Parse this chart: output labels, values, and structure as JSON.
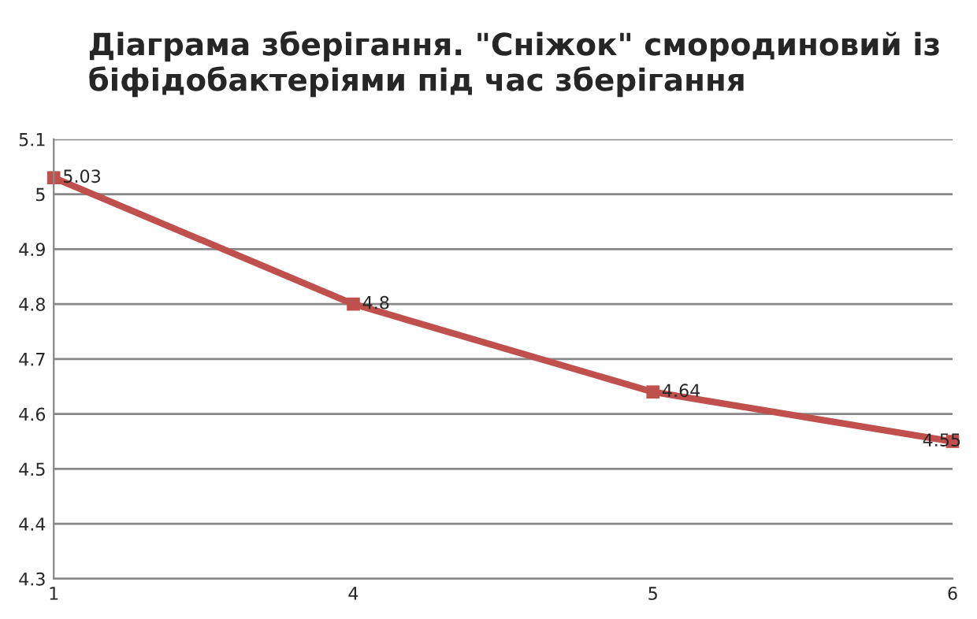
{
  "chart_data": {
    "type": "line",
    "title": "Діаграма зберігання. \"Сніжок\" смородиновий із біфідобактеріями під час зберігання",
    "categories": [
      "1",
      "4",
      "5",
      "6"
    ],
    "series": [
      {
        "color": "#c0504d",
        "values": [
          5.03,
          4.8,
          4.64,
          4.55
        ]
      }
    ],
    "ylim": [
      4.3,
      5.1
    ],
    "yticks": [
      4.3,
      4.4,
      4.5,
      4.6,
      4.7,
      4.8,
      4.9,
      5,
      5.1
    ],
    "grid": "y",
    "marker": "square",
    "line_style": "solid",
    "data_labels": true,
    "legend": false
  }
}
